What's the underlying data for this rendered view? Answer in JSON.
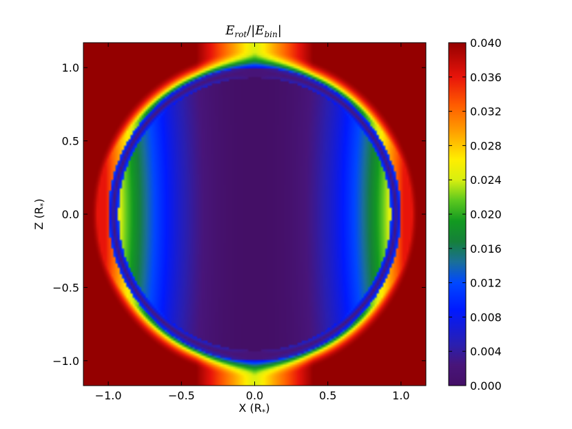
{
  "chart_data": {
    "type": "heatmap",
    "title": "E_rot/|E_bin|",
    "title_parts": {
      "num": "E",
      "num_sub": "rot",
      "sep": "/|",
      "den": "E",
      "den_sub": "bin",
      "end": "|"
    },
    "xlabel": "X (R",
    "ylabel": "Z (R",
    "label_subscript": "*",
    "label_close": ")",
    "xlim": [
      -1.17,
      1.17
    ],
    "ylim": [
      -1.17,
      1.17
    ],
    "x_ticks": [
      {
        "value": -1.0,
        "label": "−1.0"
      },
      {
        "value": -0.5,
        "label": "−0.5"
      },
      {
        "value": 0.0,
        "label": "0.0"
      },
      {
        "value": 0.5,
        "label": "0.5"
      },
      {
        "value": 1.0,
        "label": "1.0"
      }
    ],
    "y_ticks": [
      {
        "value": 1.0,
        "label": "1.0"
      },
      {
        "value": 0.5,
        "label": "0.5"
      },
      {
        "value": 0.0,
        "label": "0.0"
      },
      {
        "value": -0.5,
        "label": "−0.5"
      },
      {
        "value": -1.0,
        "label": "−1.0"
      }
    ],
    "colorbar": {
      "range": [
        0.0,
        0.04
      ],
      "colormap": "jet",
      "ticks": [
        {
          "value": 0.04,
          "label": "0.040"
        },
        {
          "value": 0.036,
          "label": "0.036"
        },
        {
          "value": 0.032,
          "label": "0.032"
        },
        {
          "value": 0.028,
          "label": "0.028"
        },
        {
          "value": 0.024,
          "label": "0.024"
        },
        {
          "value": 0.02,
          "label": "0.020"
        },
        {
          "value": 0.016,
          "label": "0.016"
        },
        {
          "value": 0.012,
          "label": "0.012"
        },
        {
          "value": 0.008,
          "label": "0.008"
        },
        {
          "value": 0.004,
          "label": "0.004"
        },
        {
          "value": 0.0,
          "label": "0.000"
        }
      ]
    },
    "field_description": {
      "star_radius": 1.0,
      "inner_shell_radius": 0.93,
      "value_at_axis": 0.0,
      "inner_peak_value": 0.025,
      "outside_value": 0.04
    }
  }
}
